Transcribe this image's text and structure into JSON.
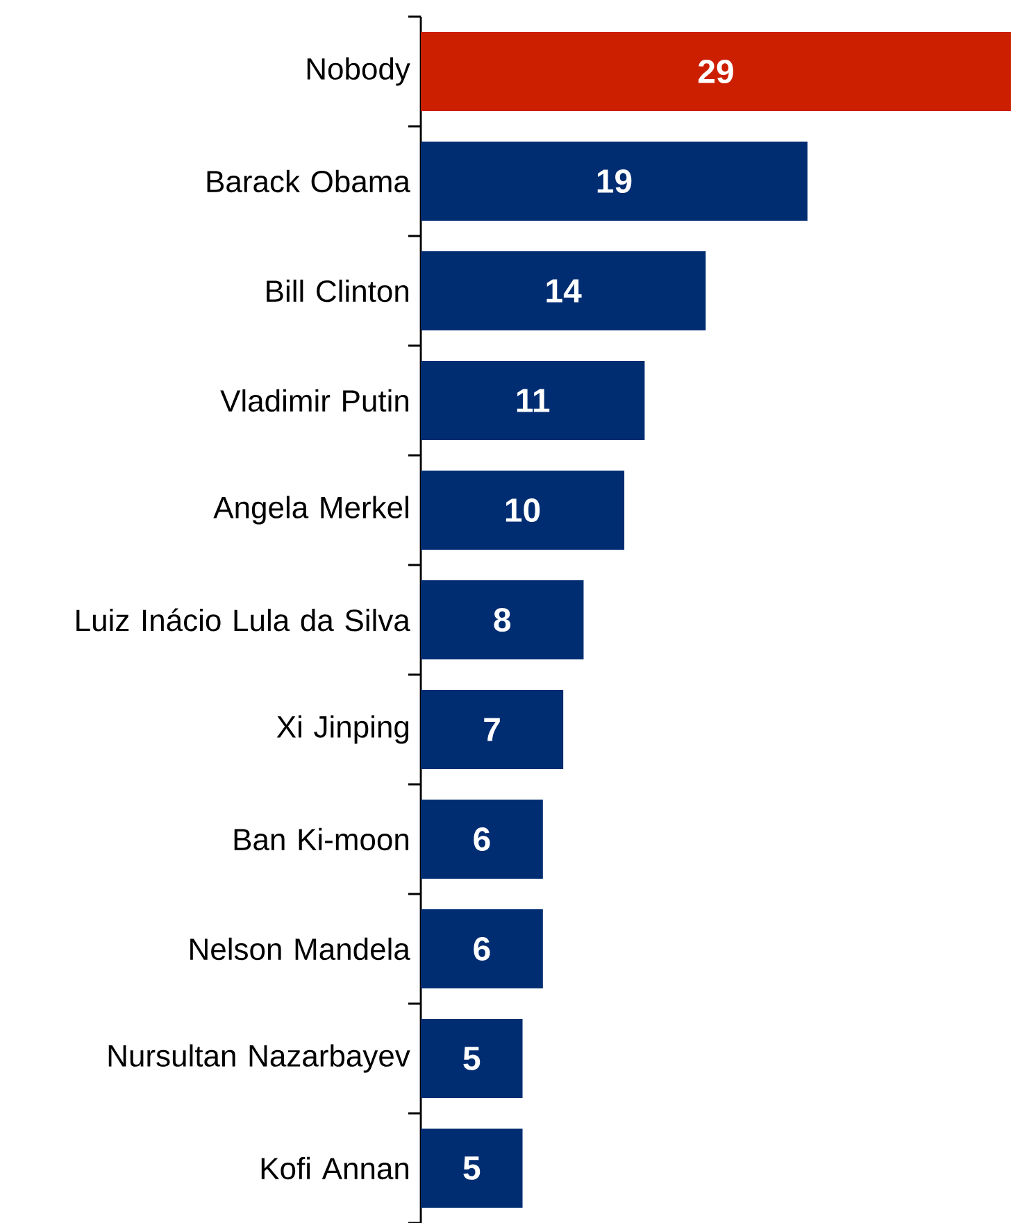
{
  "chart_data": {
    "type": "bar",
    "orientation": "horizontal",
    "data_labels": true,
    "categories": [
      "Nobody",
      "Barack Obama",
      "Bill Clinton",
      "Vladimir Putin",
      "Angela Merkel",
      "Luiz Inácio Lula da Silva",
      "Xi Jinping",
      "Ban Ki-moon",
      "Nelson Mandela",
      "Nursultan Nazarbayev",
      "Kofi Annan"
    ],
    "values": [
      29,
      19,
      14,
      11,
      10,
      8,
      7,
      6,
      6,
      5,
      5
    ],
    "colors": [
      "#cc1f00",
      "#002d72",
      "#002d72",
      "#002d72",
      "#002d72",
      "#002d72",
      "#002d72",
      "#002d72",
      "#002d72",
      "#002d72",
      "#002d72"
    ]
  }
}
